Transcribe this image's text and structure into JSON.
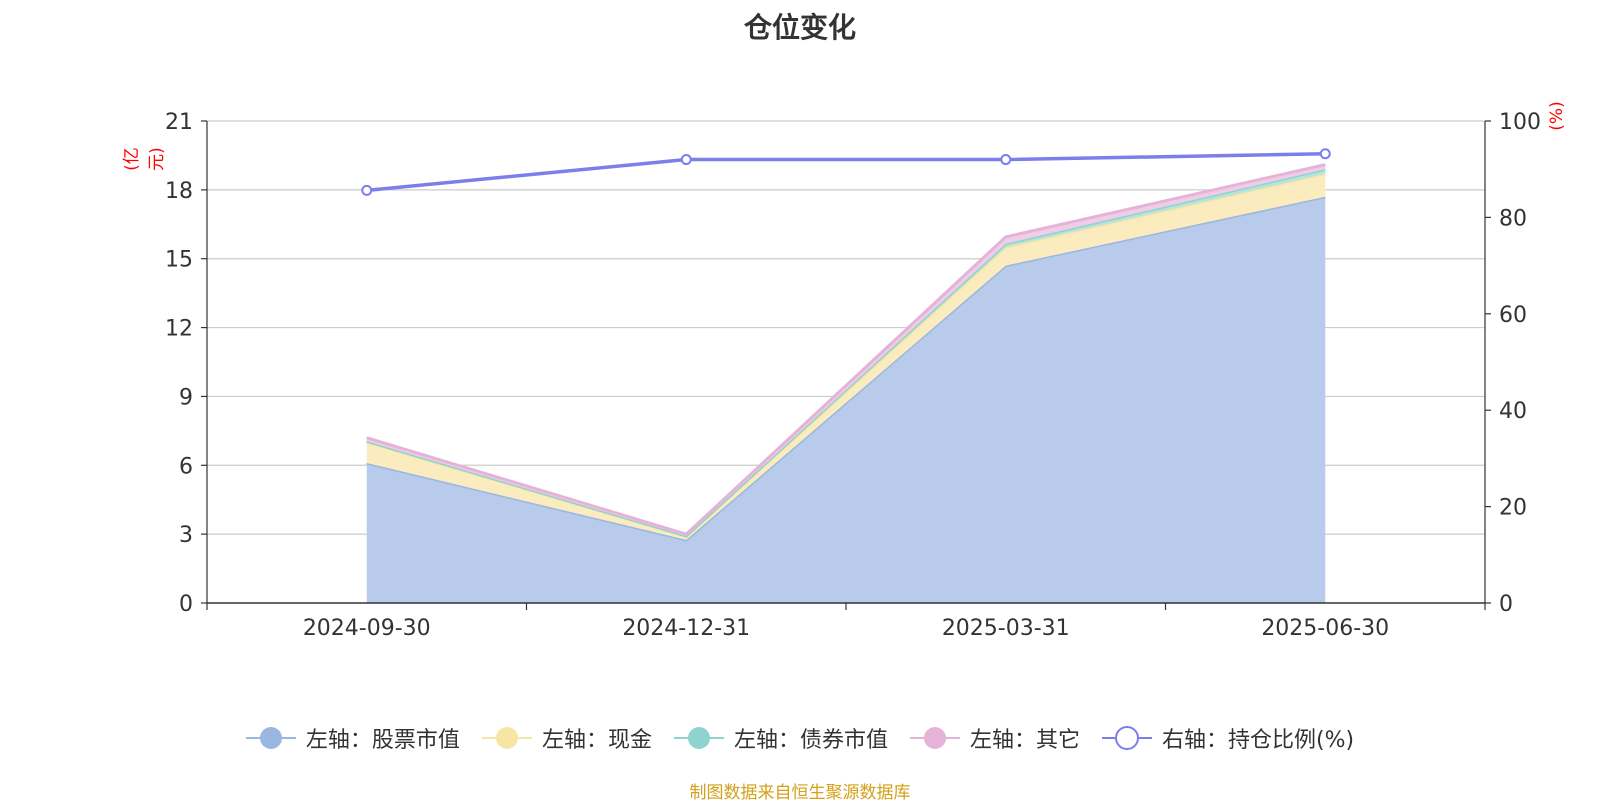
{
  "title": "仓位变化",
  "source": "制图数据来自恒生聚源数据库",
  "left_unit": "(亿元)",
  "right_unit": "(%)",
  "chart_data": {
    "type": "area",
    "title": "仓位变化",
    "categories": [
      "2024-09-30",
      "2024-12-31",
      "2025-03-31",
      "2025-06-30"
    ],
    "left_axis": {
      "label": "(亿元)",
      "ylim": [
        0,
        21
      ],
      "ticks": [
        0,
        3,
        6,
        9,
        12,
        15,
        18,
        21
      ]
    },
    "right_axis": {
      "label": "(%)",
      "ylim": [
        0,
        100
      ],
      "ticks": [
        0,
        20,
        40,
        60,
        80,
        100
      ]
    },
    "grid": true,
    "legend_position": "bottom",
    "series": [
      {
        "name": "左轴：股票市值",
        "axis": "left",
        "stacked": true,
        "values": [
          6.1,
          2.75,
          14.7,
          17.7
        ],
        "color": "#9bb6e0",
        "fill": "#b8cbea"
      },
      {
        "name": "左轴：现金",
        "axis": "left",
        "stacked": true,
        "values": [
          0.9,
          0.15,
          0.8,
          1.0
        ],
        "color": "#f7e6a3",
        "fill": "#faecbf"
      },
      {
        "name": "左轴：债券市值",
        "axis": "left",
        "stacked": true,
        "values": [
          0.05,
          0.02,
          0.15,
          0.2
        ],
        "color": "#8fd3cf",
        "fill": "#b5e3df"
      },
      {
        "name": "左轴：其它",
        "axis": "left",
        "stacked": true,
        "values": [
          0.15,
          0.08,
          0.3,
          0.2
        ],
        "color": "#e6b3d8",
        "fill": "#f0cde6"
      },
      {
        "name": "右轴：持仓比例(%)",
        "axis": "right",
        "stacked": false,
        "type": "line",
        "values": [
          85.6,
          92.0,
          92.0,
          93.2
        ],
        "color": "#7b7fec"
      }
    ]
  }
}
